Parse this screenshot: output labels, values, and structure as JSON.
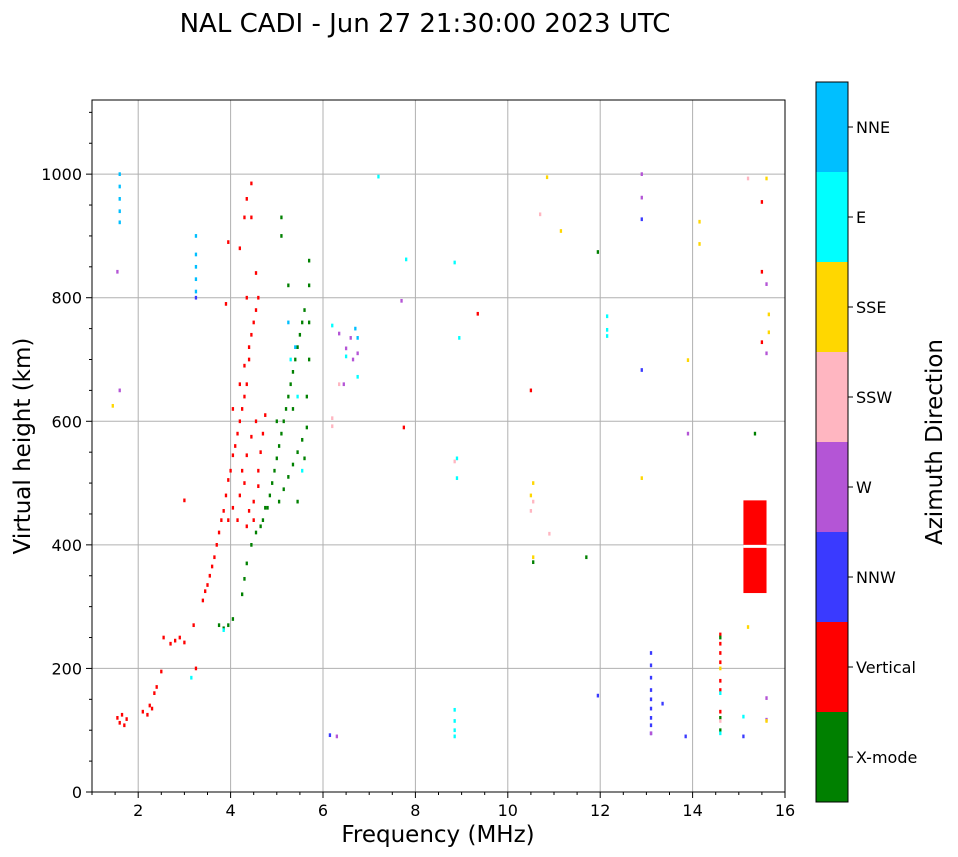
{
  "title": "NAL CADI - Jun 27 21:30:00 2023 UTC",
  "colors": {
    "X-mode": "#008000",
    "Vertical": "#ff0000",
    "NNW": "#3a3aff",
    "W": "#b455d6",
    "SSW": "#ffb6c1",
    "SSE": "#ffd700",
    "E": "#00ffff",
    "NNE": "#00bfff",
    "grid": "#b0b0b0"
  },
  "colorbar": {
    "label": "Azimuth Direction",
    "categories": [
      "X-mode",
      "Vertical",
      "NNW",
      "W",
      "SSW",
      "SSE",
      "E",
      "NNE"
    ]
  },
  "chart_data": {
    "type": "scatter",
    "title": "NAL CADI - Jun 27 21:30:00 2023 UTC",
    "xlabel": "Frequency (MHz)",
    "ylabel": "Virtual height (km)",
    "xlim": [
      1,
      16
    ],
    "ylim": [
      0,
      1120
    ],
    "xticks": [
      2,
      4,
      6,
      8,
      10,
      12,
      14,
      16
    ],
    "yticks": [
      0,
      200,
      400,
      600,
      800,
      1000
    ],
    "grid": true,
    "marker_width_mhz": 0.05,
    "marker_height_km": 6,
    "series": [
      {
        "name": "Vertical",
        "points": [
          [
            1.55,
            120
          ],
          [
            1.6,
            112
          ],
          [
            1.65,
            125
          ],
          [
            1.7,
            108
          ],
          [
            1.75,
            118
          ],
          [
            2.1,
            130
          ],
          [
            2.2,
            125
          ],
          [
            2.25,
            140
          ],
          [
            2.3,
            135
          ],
          [
            2.35,
            160
          ],
          [
            2.4,
            170
          ],
          [
            2.5,
            195
          ],
          [
            2.7,
            240
          ],
          [
            2.8,
            245
          ],
          [
            2.9,
            250
          ],
          [
            3.0,
            242
          ],
          [
            3.2,
            270
          ],
          [
            3.4,
            310
          ],
          [
            3.45,
            325
          ],
          [
            3.5,
            335
          ],
          [
            3.55,
            350
          ],
          [
            3.6,
            365
          ],
          [
            3.65,
            380
          ],
          [
            3.7,
            400
          ],
          [
            3.75,
            420
          ],
          [
            3.8,
            440
          ],
          [
            3.85,
            455
          ],
          [
            3.9,
            480
          ],
          [
            3.95,
            505
          ],
          [
            4.0,
            520
          ],
          [
            4.05,
            545
          ],
          [
            4.1,
            560
          ],
          [
            4.15,
            580
          ],
          [
            4.2,
            600
          ],
          [
            4.25,
            620
          ],
          [
            4.3,
            640
          ],
          [
            4.35,
            660
          ],
          [
            4.4,
            700
          ],
          [
            4.45,
            740
          ],
          [
            4.5,
            760
          ],
          [
            4.55,
            780
          ],
          [
            3.95,
            440
          ],
          [
            4.05,
            460
          ],
          [
            4.2,
            480
          ],
          [
            4.3,
            500
          ],
          [
            4.4,
            455
          ],
          [
            4.5,
            470
          ],
          [
            4.6,
            495
          ],
          [
            4.6,
            520
          ],
          [
            4.65,
            550
          ],
          [
            4.7,
            580
          ],
          [
            4.75,
            610
          ],
          [
            4.25,
            520
          ],
          [
            4.35,
            545
          ],
          [
            4.45,
            575
          ],
          [
            4.55,
            600
          ],
          [
            4.15,
            440
          ],
          [
            4.35,
            430
          ],
          [
            4.5,
            440
          ],
          [
            4.05,
            620
          ],
          [
            4.2,
            660
          ],
          [
            4.3,
            690
          ],
          [
            4.4,
            720
          ],
          [
            4.35,
            800
          ],
          [
            4.6,
            800
          ],
          [
            4.55,
            840
          ],
          [
            4.2,
            880
          ],
          [
            4.3,
            930
          ],
          [
            4.45,
            930
          ],
          [
            4.35,
            960
          ],
          [
            4.45,
            985
          ],
          [
            3.95,
            890
          ],
          [
            3.9,
            790
          ],
          [
            9.35,
            774
          ],
          [
            7.75,
            590
          ],
          [
            10.5,
            650
          ],
          [
            15.5,
            955
          ],
          [
            15.5,
            842
          ],
          [
            15.5,
            728
          ],
          [
            14.6,
            255
          ],
          [
            14.6,
            240
          ],
          [
            14.6,
            225
          ],
          [
            14.6,
            210
          ],
          [
            14.6,
            180
          ],
          [
            14.6,
            165
          ],
          [
            14.6,
            130
          ],
          [
            3.0,
            472
          ],
          [
            3.25,
            200
          ],
          [
            2.55,
            250
          ]
        ]
      },
      {
        "name": "X-mode",
        "points": [
          [
            3.75,
            270
          ],
          [
            3.85,
            265
          ],
          [
            3.95,
            270
          ],
          [
            4.05,
            280
          ],
          [
            4.25,
            320
          ],
          [
            4.3,
            345
          ],
          [
            4.35,
            370
          ],
          [
            4.45,
            400
          ],
          [
            4.55,
            420
          ],
          [
            4.65,
            430
          ],
          [
            4.7,
            440
          ],
          [
            4.8,
            460
          ],
          [
            4.85,
            480
          ],
          [
            4.9,
            500
          ],
          [
            4.95,
            520
          ],
          [
            5.0,
            540
          ],
          [
            5.05,
            560
          ],
          [
            5.1,
            580
          ],
          [
            5.15,
            600
          ],
          [
            5.2,
            620
          ],
          [
            5.25,
            640
          ],
          [
            5.3,
            660
          ],
          [
            5.35,
            680
          ],
          [
            5.4,
            700
          ],
          [
            5.45,
            720
          ],
          [
            5.5,
            740
          ],
          [
            5.55,
            760
          ],
          [
            5.6,
            780
          ],
          [
            5.05,
            470
          ],
          [
            5.15,
            490
          ],
          [
            5.25,
            510
          ],
          [
            5.35,
            530
          ],
          [
            5.45,
            550
          ],
          [
            5.55,
            570
          ],
          [
            5.65,
            590
          ],
          [
            5.65,
            640
          ],
          [
            5.7,
            700
          ],
          [
            5.7,
            760
          ],
          [
            5.7,
            820
          ],
          [
            5.7,
            860
          ],
          [
            5.1,
            900
          ],
          [
            5.1,
            930
          ],
          [
            5.25,
            820
          ],
          [
            5.35,
            620
          ],
          [
            5.45,
            470
          ],
          [
            5.6,
            540
          ],
          [
            4.75,
            460
          ],
          [
            5.0,
            600
          ],
          [
            11.7,
            380
          ],
          [
            10.55,
            372
          ],
          [
            11.95,
            874
          ],
          [
            15.35,
            580
          ],
          [
            14.6,
            250
          ],
          [
            14.6,
            120
          ],
          [
            14.6,
            100
          ]
        ]
      },
      {
        "name": "NNW",
        "points": [
          [
            13.1,
            225
          ],
          [
            13.1,
            205
          ],
          [
            13.1,
            185
          ],
          [
            13.1,
            165
          ],
          [
            13.1,
            150
          ],
          [
            13.1,
            135
          ],
          [
            13.1,
            120
          ],
          [
            13.1,
            108
          ],
          [
            13.1,
            95
          ],
          [
            13.35,
            143
          ],
          [
            13.85,
            90
          ],
          [
            15.1,
            90
          ],
          [
            11.95,
            156
          ],
          [
            12.9,
            927
          ],
          [
            12.9,
            683
          ],
          [
            6.15,
            92
          ],
          [
            3.25,
            800
          ]
        ]
      },
      {
        "name": "W",
        "points": [
          [
            12.9,
            1000
          ],
          [
            12.9,
            962
          ],
          [
            13.9,
            580
          ],
          [
            6.35,
            742
          ],
          [
            6.5,
            718
          ],
          [
            6.6,
            735
          ],
          [
            6.65,
            700
          ],
          [
            6.45,
            660
          ],
          [
            15.6,
            822
          ],
          [
            15.6,
            710
          ],
          [
            15.6,
            152
          ],
          [
            15.6,
            117
          ],
          [
            1.6,
            650
          ],
          [
            1.55,
            842
          ],
          [
            7.7,
            795
          ],
          [
            13.1,
            95
          ],
          [
            6.3,
            90
          ],
          [
            6.75,
            710
          ]
        ]
      },
      {
        "name": "SSW",
        "points": [
          [
            6.2,
            592
          ],
          [
            6.2,
            605
          ],
          [
            10.7,
            935
          ],
          [
            15.2,
            993
          ],
          [
            14.6,
            115
          ],
          [
            10.5,
            455
          ],
          [
            10.9,
            418
          ],
          [
            8.85,
            535
          ],
          [
            6.35,
            660
          ],
          [
            10.55,
            470
          ]
        ]
      },
      {
        "name": "SSE",
        "points": [
          [
            10.85,
            995
          ],
          [
            11.15,
            908
          ],
          [
            14.15,
            923
          ],
          [
            14.15,
            887
          ],
          [
            13.9,
            699
          ],
          [
            12.9,
            508
          ],
          [
            10.55,
            500
          ],
          [
            10.55,
            380
          ],
          [
            15.65,
            773
          ],
          [
            15.65,
            744
          ],
          [
            15.6,
            993
          ],
          [
            15.6,
            115
          ],
          [
            15.2,
            267
          ],
          [
            14.6,
            200
          ],
          [
            1.45,
            625
          ],
          [
            10.5,
            480
          ]
        ]
      },
      {
        "name": "E",
        "points": [
          [
            7.2,
            996
          ],
          [
            7.8,
            862
          ],
          [
            8.85,
            857
          ],
          [
            8.95,
            735
          ],
          [
            8.9,
            540
          ],
          [
            8.9,
            508
          ],
          [
            8.85,
            133
          ],
          [
            8.85,
            115
          ],
          [
            8.85,
            100
          ],
          [
            8.85,
            90
          ],
          [
            12.15,
            770
          ],
          [
            12.15,
            748
          ],
          [
            12.15,
            738
          ],
          [
            15.1,
            122
          ],
          [
            14.6,
            160
          ],
          [
            14.6,
            95
          ],
          [
            6.2,
            755
          ],
          [
            6.75,
            672
          ],
          [
            6.5,
            705
          ],
          [
            5.3,
            700
          ],
          [
            5.45,
            640
          ],
          [
            5.55,
            520
          ],
          [
            3.15,
            185
          ],
          [
            3.85,
            262
          ]
        ]
      },
      {
        "name": "NNE",
        "points": [
          [
            1.6,
            1000
          ],
          [
            1.6,
            980
          ],
          [
            1.6,
            960
          ],
          [
            1.6,
            940
          ],
          [
            1.6,
            922
          ],
          [
            3.25,
            900
          ],
          [
            3.25,
            870
          ],
          [
            3.25,
            850
          ],
          [
            3.25,
            830
          ],
          [
            3.25,
            810
          ],
          [
            6.7,
            750
          ],
          [
            6.75,
            735
          ],
          [
            5.25,
            760
          ],
          [
            5.4,
            720
          ]
        ]
      }
    ]
  }
}
